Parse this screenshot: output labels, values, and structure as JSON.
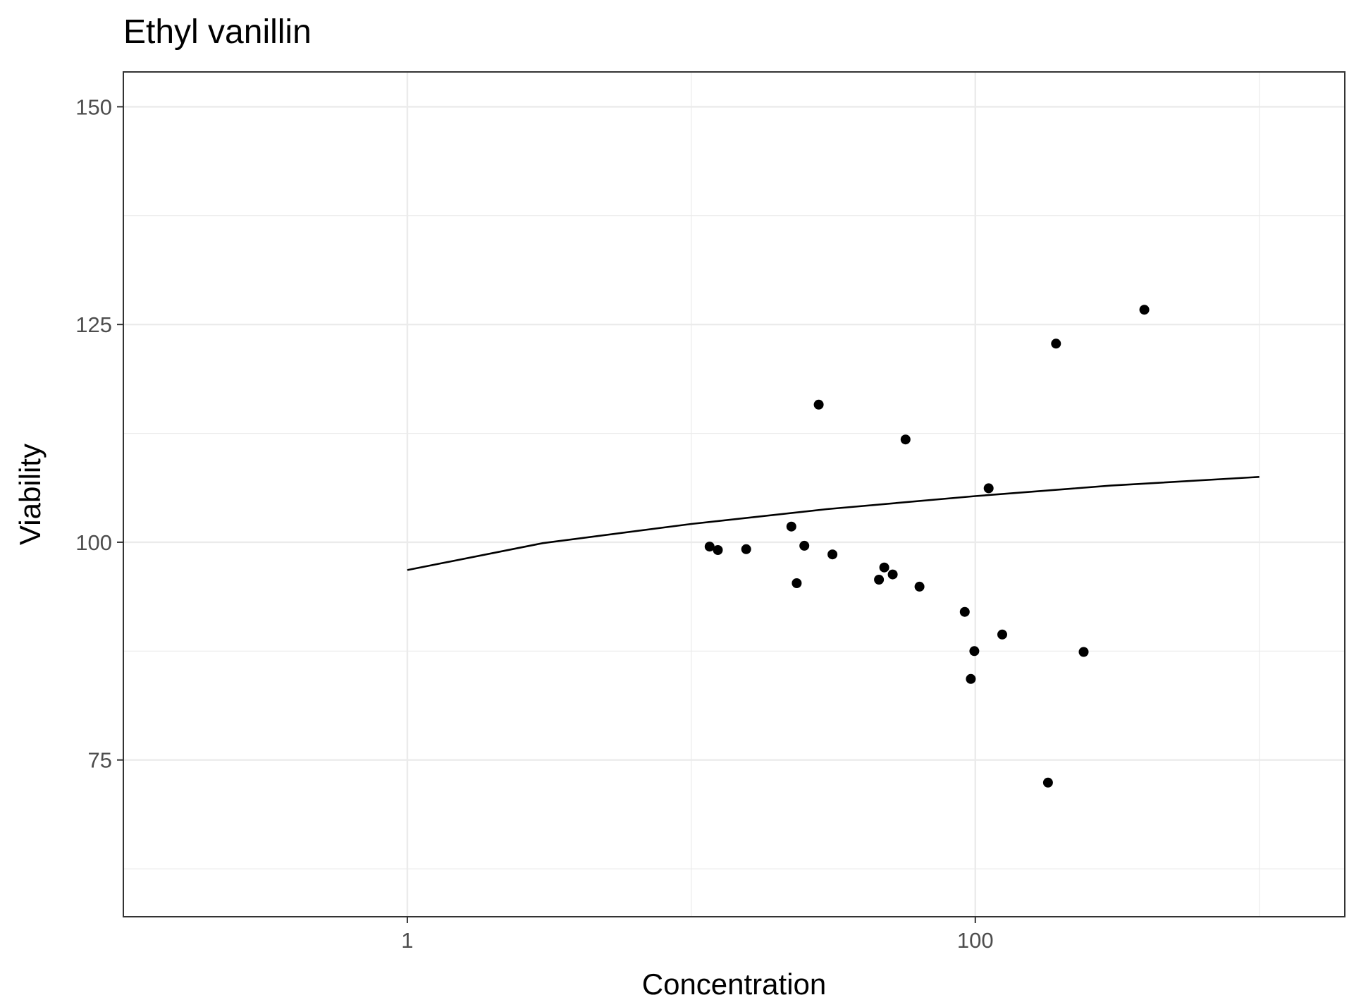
{
  "chart_data": {
    "type": "scatter",
    "title": "Ethyl vanillin",
    "xlabel": "Concentration",
    "ylabel": "Viability",
    "x_scale": "log10",
    "xlim": [
      0.1,
      2000
    ],
    "ylim": [
      57,
      154
    ],
    "x_ticks": [
      1,
      100
    ],
    "x_tick_labels": [
      "1",
      "100"
    ],
    "y_ticks": [
      75,
      100,
      125,
      150
    ],
    "y_tick_labels": [
      "75",
      "100",
      "125",
      "150"
    ],
    "grid": true,
    "theme": "bw",
    "points": [
      {
        "x": 11.6,
        "y": 99.5
      },
      {
        "x": 12.4,
        "y": 99.1
      },
      {
        "x": 15.6,
        "y": 99.2
      },
      {
        "x": 22.5,
        "y": 101.8
      },
      {
        "x": 23.5,
        "y": 95.3
      },
      {
        "x": 25.0,
        "y": 99.6
      },
      {
        "x": 28.1,
        "y": 115.8
      },
      {
        "x": 31.4,
        "y": 98.6
      },
      {
        "x": 45.8,
        "y": 95.7
      },
      {
        "x": 47.8,
        "y": 97.1
      },
      {
        "x": 51.2,
        "y": 96.3
      },
      {
        "x": 56.8,
        "y": 111.8
      },
      {
        "x": 63.6,
        "y": 94.9
      },
      {
        "x": 91.8,
        "y": 92.0
      },
      {
        "x": 96.4,
        "y": 84.3
      },
      {
        "x": 99.2,
        "y": 87.5
      },
      {
        "x": 111.4,
        "y": 106.2
      },
      {
        "x": 124.4,
        "y": 89.4
      },
      {
        "x": 180.3,
        "y": 72.4
      },
      {
        "x": 192.4,
        "y": 122.8
      },
      {
        "x": 240.7,
        "y": 87.4
      },
      {
        "x": 393.7,
        "y": 126.7
      }
    ],
    "fit_line": {
      "x": [
        1,
        3,
        10,
        30,
        100,
        300,
        1000
      ],
      "y": [
        96.8,
        99.9,
        102.1,
        103.8,
        105.3,
        106.5,
        107.5
      ]
    }
  }
}
